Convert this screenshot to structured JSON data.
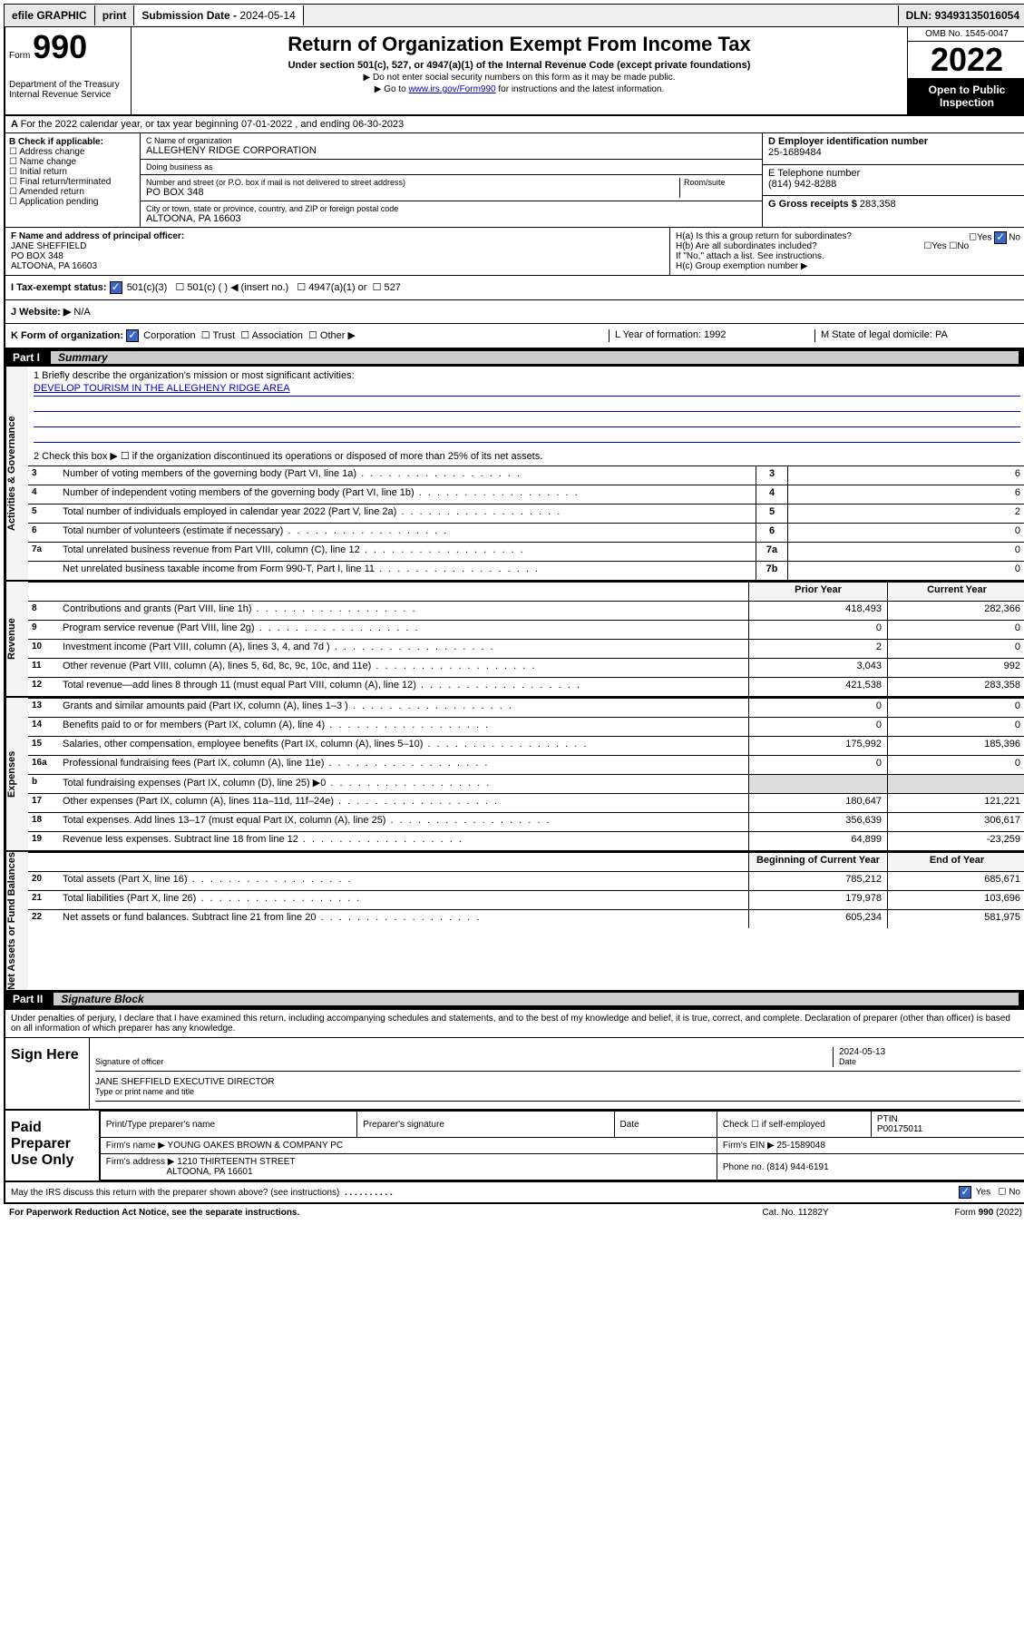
{
  "topbar": {
    "efile": "efile GRAPHIC",
    "print": "print",
    "sub_label": "Submission Date - ",
    "sub_date": "2024-05-14",
    "dln_label": "DLN: ",
    "dln": "93493135016054"
  },
  "header": {
    "form_word": "Form",
    "form_num": "990",
    "dept": "Department of the Treasury",
    "irs": "Internal Revenue Service",
    "title": "Return of Organization Exempt From Income Tax",
    "sub1": "Under section 501(c), 527, or 4947(a)(1) of the Internal Revenue Code (except private foundations)",
    "sub2": "Do not enter social security numbers on this form as it may be made public.",
    "sub3_pre": "Go to ",
    "sub3_link": "www.irs.gov/Form990",
    "sub3_post": " for instructions and the latest information.",
    "omb": "OMB No. 1545-0047",
    "year": "2022",
    "open1": "Open to Public",
    "open2": "Inspection"
  },
  "lineA": "For the 2022 calendar year, or tax year beginning 07-01-2022   , and ending 06-30-2023",
  "boxB": {
    "label": "B Check if applicable:",
    "opts": [
      "Address change",
      "Name change",
      "Initial return",
      "Final return/terminated",
      "Amended return",
      "Application pending"
    ]
  },
  "boxC": {
    "name_lbl": "C Name of organization",
    "name": "ALLEGHENY RIDGE CORPORATION",
    "dba_lbl": "Doing business as",
    "dba": "",
    "addr_lbl": "Number and street (or P.O. box if mail is not delivered to street address)",
    "room_lbl": "Room/suite",
    "addr": "PO BOX 348",
    "city_lbl": "City or town, state or province, country, and ZIP or foreign postal code",
    "city": "ALTOONA, PA  16603"
  },
  "boxD": {
    "lbl": "D Employer identification number",
    "val": "25-1689484"
  },
  "boxE": {
    "lbl": "E Telephone number",
    "val": "(814) 942-8288"
  },
  "boxG": {
    "lbl": "G Gross receipts $",
    "val": "283,358"
  },
  "boxF": {
    "lbl": "F Name and address of principal officer:",
    "name": "JANE SHEFFIELD",
    "addr1": "PO BOX 348",
    "addr2": "ALTOONA, PA  16603"
  },
  "boxH": {
    "ha": "H(a)  Is this a group return for subordinates?",
    "hb": "H(b)  Are all subordinates included?",
    "hb2": "If \"No,\" attach a list. See instructions.",
    "hc": "H(c)  Group exemption number ▶"
  },
  "rowI": {
    "lbl": "I   Tax-exempt status:",
    "o1": "501(c)(3)",
    "o2": "501(c) (  ) ◀ (insert no.)",
    "o3": "4947(a)(1) or",
    "o4": "527"
  },
  "rowJ": {
    "lbl": "J   Website: ▶",
    "val": "N/A"
  },
  "rowK": {
    "lbl": "K Form of organization:",
    "o1": "Corporation",
    "o2": "Trust",
    "o3": "Association",
    "o4": "Other ▶",
    "L": "L Year of formation: 1992",
    "M": "M State of legal domicile: PA"
  },
  "part1": {
    "num": "Part I",
    "title": "Summary"
  },
  "mission": {
    "l1": "1   Briefly describe the organization's mission or most significant activities:",
    "text": "DEVELOP TOURISM IN THE ALLEGHENY RIDGE AREA",
    "l2": "2   Check this box ▶ ☐  if the organization discontinued its operations or disposed of more than 25% of its net assets."
  },
  "gov_rows": [
    {
      "n": "3",
      "t": "Number of voting members of the governing body (Part VI, line 1a)",
      "cn": "3",
      "v": "6"
    },
    {
      "n": "4",
      "t": "Number of independent voting members of the governing body (Part VI, line 1b)",
      "cn": "4",
      "v": "6"
    },
    {
      "n": "5",
      "t": "Total number of individuals employed in calendar year 2022 (Part V, line 2a)",
      "cn": "5",
      "v": "2"
    },
    {
      "n": "6",
      "t": "Total number of volunteers (estimate if necessary)",
      "cn": "6",
      "v": "0"
    },
    {
      "n": "7a",
      "t": "Total unrelated business revenue from Part VIII, column (C), line 12",
      "cn": "7a",
      "v": "0"
    },
    {
      "n": "",
      "t": "Net unrelated business taxable income from Form 990-T, Part I, line 11",
      "cn": "7b",
      "v": "0"
    }
  ],
  "col_hdr": {
    "prior": "Prior Year",
    "current": "Current Year",
    "boy": "Beginning of Current Year",
    "eoy": "End of Year"
  },
  "rev_rows": [
    {
      "n": "8",
      "t": "Contributions and grants (Part VIII, line 1h)",
      "p": "418,493",
      "c": "282,366"
    },
    {
      "n": "9",
      "t": "Program service revenue (Part VIII, line 2g)",
      "p": "0",
      "c": "0"
    },
    {
      "n": "10",
      "t": "Investment income (Part VIII, column (A), lines 3, 4, and 7d )",
      "p": "2",
      "c": "0"
    },
    {
      "n": "11",
      "t": "Other revenue (Part VIII, column (A), lines 5, 6d, 8c, 9c, 10c, and 11e)",
      "p": "3,043",
      "c": "992"
    },
    {
      "n": "12",
      "t": "Total revenue—add lines 8 through 11 (must equal Part VIII, column (A), line 12)",
      "p": "421,538",
      "c": "283,358"
    }
  ],
  "exp_rows": [
    {
      "n": "13",
      "t": "Grants and similar amounts paid (Part IX, column (A), lines 1–3 )",
      "p": "0",
      "c": "0"
    },
    {
      "n": "14",
      "t": "Benefits paid to or for members (Part IX, column (A), line 4)",
      "p": "0",
      "c": "0"
    },
    {
      "n": "15",
      "t": "Salaries, other compensation, employee benefits (Part IX, column (A), lines 5–10)",
      "p": "175,992",
      "c": "185,396"
    },
    {
      "n": "16a",
      "t": "Professional fundraising fees (Part IX, column (A), line 11e)",
      "p": "0",
      "c": "0"
    },
    {
      "n": "b",
      "t": "Total fundraising expenses (Part IX, column (D), line 25) ▶0",
      "p": "",
      "c": ""
    },
    {
      "n": "17",
      "t": "Other expenses (Part IX, column (A), lines 11a–11d, 11f–24e)",
      "p": "180,647",
      "c": "121,221"
    },
    {
      "n": "18",
      "t": "Total expenses. Add lines 13–17 (must equal Part IX, column (A), line 25)",
      "p": "356,639",
      "c": "306,617"
    },
    {
      "n": "19",
      "t": "Revenue less expenses. Subtract line 18 from line 12",
      "p": "64,899",
      "c": "-23,259"
    }
  ],
  "na_rows": [
    {
      "n": "20",
      "t": "Total assets (Part X, line 16)",
      "p": "785,212",
      "c": "685,671"
    },
    {
      "n": "21",
      "t": "Total liabilities (Part X, line 26)",
      "p": "179,978",
      "c": "103,696"
    },
    {
      "n": "22",
      "t": "Net assets or fund balances. Subtract line 21 from line 20",
      "p": "605,234",
      "c": "581,975"
    }
  ],
  "vtabs": {
    "gov": "Activities & Governance",
    "rev": "Revenue",
    "exp": "Expenses",
    "na": "Net Assets or Fund Balances"
  },
  "part2": {
    "num": "Part II",
    "title": "Signature Block"
  },
  "decl": "Under penalties of perjury, I declare that I have examined this return, including accompanying schedules and statements, and to the best of my knowledge and belief, it is true, correct, and complete. Declaration of preparer (other than officer) is based on all information of which preparer has any knowledge.",
  "sign": {
    "here": "Sign Here",
    "sig_lbl": "Signature of officer",
    "date_lbl": "Date",
    "date": "2024-05-13",
    "name": "JANE SHEFFIELD  EXECUTIVE DIRECTOR",
    "name_lbl": "Type or print name and title"
  },
  "prep": {
    "lbl": "Paid Preparer Use Only",
    "h1": "Print/Type preparer's name",
    "h2": "Preparer's signature",
    "h3": "Date",
    "h4": "Check ☐ if self-employed",
    "h5_lbl": "PTIN",
    "h5": "P00175011",
    "firm_lbl": "Firm's name    ▶",
    "firm": "YOUNG OAKES BROWN & COMPANY PC",
    "ein_lbl": "Firm's EIN ▶",
    "ein": "25-1589048",
    "addr_lbl": "Firm's address ▶",
    "addr1": "1210 THIRTEENTH STREET",
    "addr2": "ALTOONA, PA  16601",
    "phone_lbl": "Phone no.",
    "phone": "(814) 944-6191"
  },
  "discuss": {
    "q": "May the IRS discuss this return with the preparer shown above? (see instructions)",
    "yes": "Yes",
    "no": "No"
  },
  "foot": {
    "pra": "For Paperwork Reduction Act Notice, see the separate instructions.",
    "cat": "Cat. No. 11282Y",
    "form": "Form 990 (2022)"
  }
}
